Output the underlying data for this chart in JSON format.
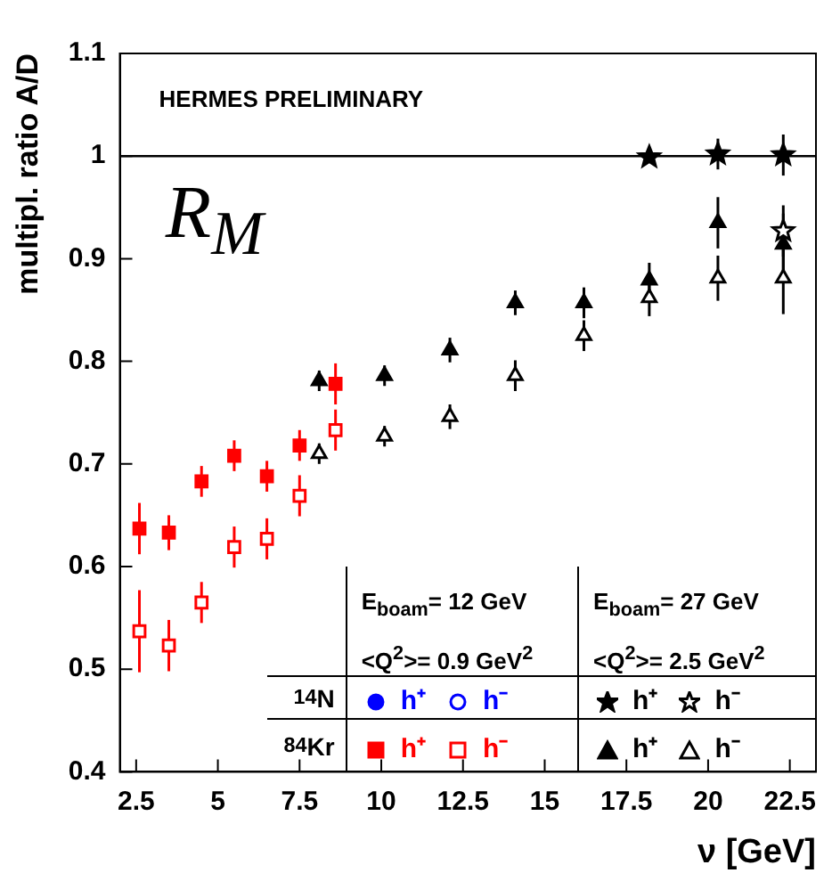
{
  "chart_data": {
    "type": "scatter",
    "xlabel": "ν [GeV]",
    "ylabel": "multipl. ratio A/D",
    "xlim": [
      2,
      23.3
    ],
    "ylim": [
      0.4,
      1.1
    ],
    "xticks": [
      2.5,
      5,
      7.5,
      10,
      12.5,
      15,
      17.5,
      20,
      22.5
    ],
    "yticks": [
      0.4,
      0.5,
      0.6,
      0.7,
      0.8,
      0.9,
      1,
      1.1
    ],
    "grid": false,
    "legend": "bottom right",
    "ref_lines": [
      {
        "axis": "y",
        "value": 1,
        "color": "#000000"
      }
    ],
    "annotations": [
      "HERMES PRELIMINARY",
      "R$_{M}$",
      "E$_{boam}$= 12 GeV",
      "<Q$^{2}$>= 0.9 GeV$^{2}$",
      "E$_{boam}$= 27 GeV",
      "<Q$^{2}$>= 2.5 GeV$^{2}$",
      "$^{14}$N",
      "$^{84}$Kr"
    ],
    "series": [
      {
        "name": "h⁺",
        "color": "#0000ff",
        "marker": "circle"
      },
      {
        "name": "h⁻",
        "color": "#0000ff",
        "marker": "circle"
      },
      {
        "name": "h⁺",
        "color": "#000000",
        "marker": "star",
        "x": [
          18.2,
          20.3,
          22.3
        ],
        "values": [
          0.999,
          1.002,
          1.001
        ],
        "errors": [
          0.003,
          0.015,
          0.02
        ]
      },
      {
        "name": "h⁻",
        "color": "#000000",
        "marker": "star",
        "x": [
          22.3
        ],
        "values": [
          0.927
        ],
        "errors": [
          0.025
        ]
      },
      {
        "name": "h⁺",
        "color": "#ff0000",
        "marker": "square",
        "x": [
          2.6,
          3.5,
          4.5,
          5.5,
          6.5,
          7.5,
          8.6
        ],
        "values": [
          0.637,
          0.633,
          0.683,
          0.708,
          0.688,
          0.718,
          0.778
        ],
        "errors": [
          0.025,
          0.017,
          0.015,
          0.015,
          0.015,
          0.015,
          0.02
        ]
      },
      {
        "name": "h⁻",
        "color": "#ff0000",
        "marker": "square",
        "x": [
          2.6,
          3.5,
          4.5,
          5.5,
          6.5,
          7.5,
          8.6
        ],
        "values": [
          0.537,
          0.523,
          0.565,
          0.619,
          0.627,
          0.669,
          0.733
        ],
        "errors": [
          0.04,
          0.025,
          0.02,
          0.02,
          0.02,
          0.02,
          0.02
        ]
      },
      {
        "name": "h⁺",
        "color": "#000000",
        "marker": "triangle",
        "x": [
          8.1,
          10.1,
          12.1,
          14.1,
          16.2,
          18.2,
          20.3,
          22.3
        ],
        "values": [
          0.781,
          0.786,
          0.811,
          0.857,
          0.857,
          0.879,
          0.935,
          0.914
        ],
        "errors": [
          0.01,
          0.01,
          0.012,
          0.012,
          0.015,
          0.017,
          0.025,
          0.03
        ]
      },
      {
        "name": "h⁻",
        "color": "#000000",
        "marker": "triangle",
        "x": [
          8.1,
          10.1,
          12.1,
          14.1,
          16.2,
          18.2,
          20.3,
          22.3
        ],
        "values": [
          0.71,
          0.727,
          0.746,
          0.786,
          0.825,
          0.862,
          0.881,
          0.881
        ],
        "errors": [
          0.01,
          0.01,
          0.012,
          0.015,
          0.015,
          0.018,
          0.022,
          0.035
        ]
      }
    ]
  }
}
